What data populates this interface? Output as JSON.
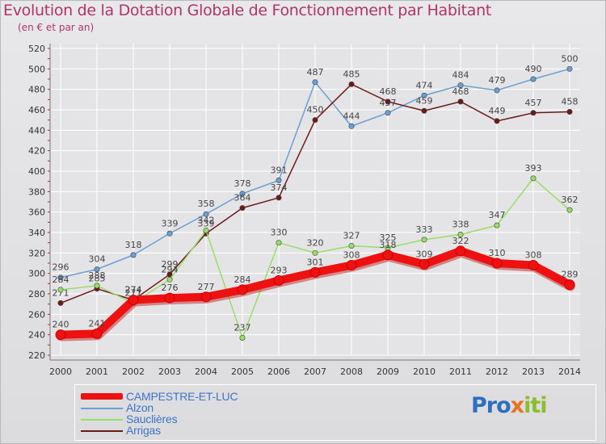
{
  "title": "Evolution de la Dotation Globale de Fonctionnement par Habitant",
  "subtitle": "(en € et par an)",
  "logo": {
    "text": "Proxiti",
    "colors": [
      "#2f6fc0",
      "#e9731f",
      "#8bbd2d"
    ]
  },
  "chart_data": {
    "type": "line",
    "x": [
      2000,
      2001,
      2002,
      2003,
      2004,
      2005,
      2006,
      2007,
      2008,
      2009,
      2010,
      2011,
      2012,
      2013,
      2014
    ],
    "ylim": [
      220,
      520
    ],
    "yticks": [
      220,
      240,
      260,
      280,
      300,
      320,
      340,
      360,
      380,
      400,
      420,
      440,
      460,
      480,
      500,
      520
    ],
    "grid": true,
    "legend_position": "bottom-left",
    "series": [
      {
        "name": "CAMPESTRE-ET-LUC",
        "color": "#ee1111",
        "values": [
          240,
          241,
          274,
          276,
          277,
          284,
          293,
          301,
          308,
          318,
          309,
          322,
          310,
          308,
          289
        ]
      },
      {
        "name": "Alzon",
        "color": "#6a9fd4",
        "values": [
          296,
          304,
          318,
          339,
          358,
          378,
          391,
          487,
          444,
          457,
          474,
          484,
          479,
          490,
          500
        ]
      },
      {
        "name": "Sauclières",
        "color": "#99dd66",
        "values": [
          284,
          288,
          271,
          294,
          342,
          237,
          330,
          320,
          327,
          325,
          333,
          338,
          347,
          393,
          362
        ]
      },
      {
        "name": "Arrigas",
        "color": "#6b1a1a",
        "values": [
          271,
          285,
          274,
          299,
          339,
          364,
          374,
          450,
          485,
          468,
          459,
          468,
          449,
          457,
          458
        ]
      }
    ]
  }
}
